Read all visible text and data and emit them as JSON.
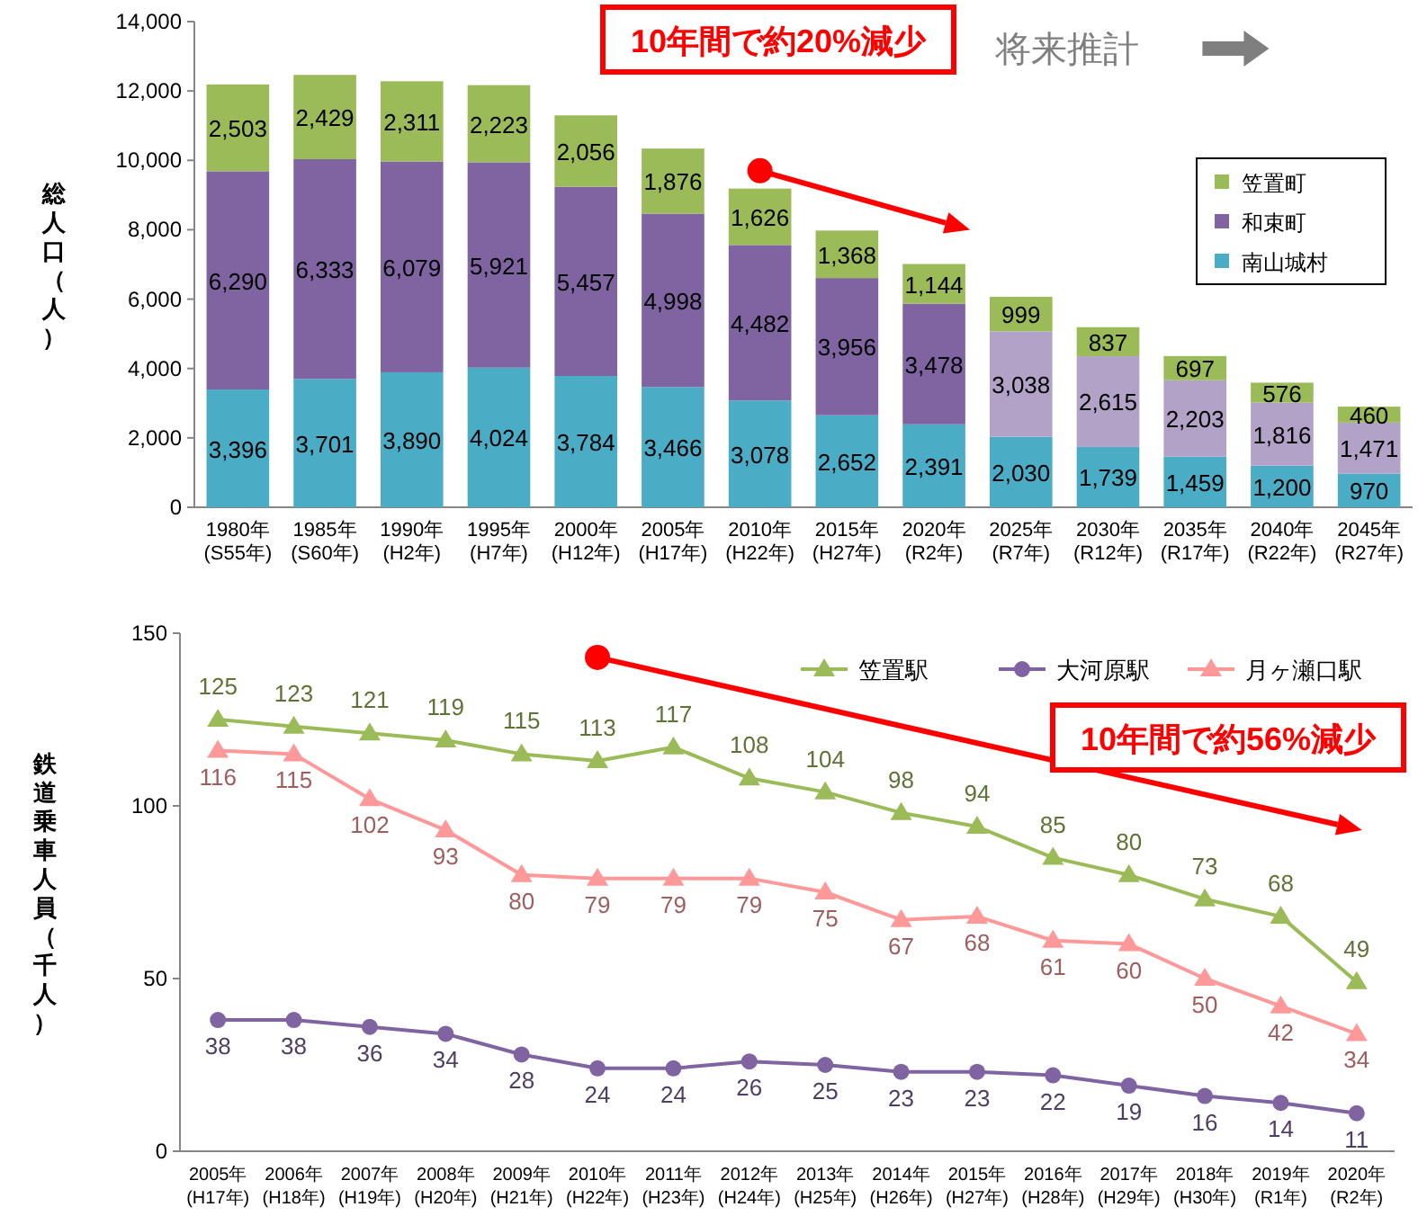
{
  "chart_data": [
    {
      "type": "bar",
      "stacked": true,
      "ylabel": "総人口（人）",
      "ylim": [
        0,
        14000
      ],
      "yticks": [
        {
          "value": 0,
          "label": "0"
        },
        {
          "value": 2000,
          "label": "2,000"
        },
        {
          "value": 4000,
          "label": "4,000"
        },
        {
          "value": 6000,
          "label": "6,000"
        },
        {
          "value": 8000,
          "label": "8,000"
        },
        {
          "value": 10000,
          "label": "10,000"
        },
        {
          "value": 12000,
          "label": "12,000"
        },
        {
          "value": 14000,
          "label": "14,000"
        }
      ],
      "categories": [
        "1980年(S55年)",
        "1985年(S60年)",
        "1990年(H2年)",
        "1995年(H7年)",
        "2000年(H12年)",
        "2005年(H17年)",
        "2010年(H22年)",
        "2015年(H27年)",
        "2020年(R2年)",
        "2025年(R7年)",
        "2030年(R12年)",
        "2035年(R17年)",
        "2040年(R22年)",
        "2045年(R27年)"
      ],
      "series": [
        {
          "name": "南山城村",
          "color": "#4bacc6",
          "values": [
            3396,
            3701,
            3890,
            4024,
            3784,
            3466,
            3078,
            2652,
            2391,
            2030,
            1739,
            1459,
            1200,
            970
          ],
          "value_labels": [
            "3,396",
            "3,701",
            "3,890",
            "4,024",
            "3,784",
            "3,466",
            "3,078",
            "2,652",
            "2,391",
            "2,030",
            "1,739",
            "1,459",
            "1,200",
            "970"
          ]
        },
        {
          "name": "和束町",
          "color": "#8064a2",
          "colors": [
            "#8064a2",
            "#8064a2",
            "#8064a2",
            "#8064a2",
            "#8064a2",
            "#8064a2",
            "#8064a2",
            "#8064a2",
            "#8064a2",
            "#b3a2c7",
            "#b3a2c7",
            "#b3a2c7",
            "#b3a2c7",
            "#b3a2c7"
          ],
          "values": [
            6290,
            6333,
            6079,
            5921,
            5457,
            4998,
            4482,
            3956,
            3478,
            3038,
            2615,
            2203,
            1816,
            1471
          ],
          "value_labels": [
            "6,290",
            "6,333",
            "6,079",
            "5,921",
            "5,457",
            "4,998",
            "4,482",
            "3,956",
            "3,478",
            "3,038",
            "2,615",
            "2,203",
            "1,816",
            "1,471"
          ]
        },
        {
          "name": "笠置町",
          "color": "#9bbb59",
          "values": [
            2503,
            2429,
            2311,
            2223,
            2056,
            1876,
            1626,
            1368,
            1144,
            999,
            837,
            697,
            576,
            460
          ],
          "value_labels": [
            "2,503",
            "2,429",
            "2,311",
            "2,223",
            "2,056",
            "1,876",
            "1,626",
            "1,368",
            "1,144",
            "999",
            "837",
            "697",
            "576",
            "460"
          ]
        }
      ],
      "legend": "top right",
      "grid": false,
      "annotations": [
        "10年間で約20%減少",
        "将来推計"
      ]
    },
    {
      "type": "line",
      "ylabel": "鉄道乗車人員（千人）",
      "ylim": [
        0,
        150
      ],
      "yticks": [
        0,
        50,
        100,
        150
      ],
      "categories": [
        "2005年(H17年)",
        "2006年(H18年)",
        "2007年(H19年)",
        "2008年(H20年)",
        "2009年(H21年)",
        "2010年(H22年)",
        "2011年(H23年)",
        "2012年(H24年)",
        "2013年(H25年)",
        "2014年(H26年)",
        "2015年(H27年)",
        "2016年(H28年)",
        "2017年(H29年)",
        "2018年(H30年)",
        "2019年(R1年)",
        "2020年(R2年)"
      ],
      "series": [
        {
          "name": "笠置駅",
          "color": "#9bbb59",
          "marker": "triangle",
          "values": [
            125,
            123,
            121,
            119,
            115,
            113,
            117,
            108,
            104,
            98,
            94,
            85,
            80,
            73,
            68,
            49
          ]
        },
        {
          "name": "大河原駅",
          "color": "#8064a2",
          "marker": "circle",
          "values": [
            38,
            38,
            36,
            34,
            28,
            24,
            24,
            26,
            25,
            23,
            23,
            22,
            19,
            16,
            14,
            11
          ]
        },
        {
          "name": "月ヶ瀬口駅",
          "color": "#ff9999",
          "marker": "triangle",
          "values": [
            116,
            115,
            102,
            93,
            80,
            79,
            79,
            79,
            75,
            67,
            68,
            61,
            60,
            50,
            42,
            34
          ]
        }
      ],
      "data_labels": true,
      "legend": "top right",
      "grid": false,
      "line_style": "solid",
      "annotations": [
        "10年間で約56%減少"
      ]
    }
  ]
}
